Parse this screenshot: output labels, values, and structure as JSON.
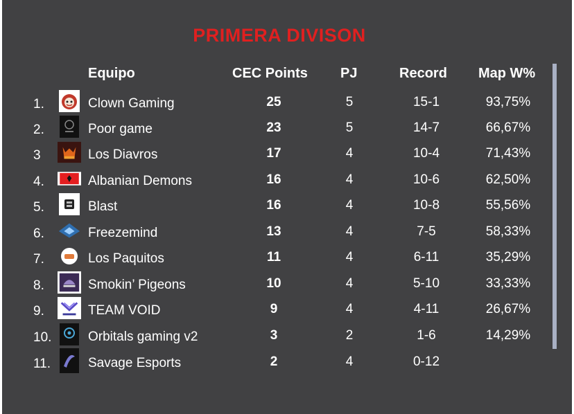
{
  "title": "PRIMERA DIVISON",
  "headers": {
    "team": "Equipo",
    "points": "CEC Points",
    "played": "PJ",
    "record": "Record",
    "map_win": "Map W%"
  },
  "colors": {
    "background": "#414143",
    "title": "#e02020",
    "text": "#ffffff",
    "scrollbar": "#a9b0c4"
  },
  "rows": [
    {
      "rank": "1.",
      "team": "Clown Gaming",
      "points": "25",
      "played": "5",
      "record": "15-1",
      "map_win": "93,75%",
      "logo_icon": "clown-logo-icon"
    },
    {
      "rank": "2.",
      "team": "Poor game",
      "points": "23",
      "played": "5",
      "record": "14-7",
      "map_win": "66,67%",
      "logo_icon": "poor-game-logo-icon"
    },
    {
      "rank": "3",
      "team": "Los Diavros",
      "points": "17",
      "played": "4",
      "record": "10-4",
      "map_win": "71,43%",
      "logo_icon": "diavros-logo-icon"
    },
    {
      "rank": "4.",
      "team": "Albanian Demons",
      "points": "16",
      "played": "4",
      "record": "10-6",
      "map_win": "62,50%",
      "logo_icon": "albanian-flag-logo-icon"
    },
    {
      "rank": "5.",
      "team": "Blast",
      "points": "16",
      "played": "4",
      "record": "10-8",
      "map_win": "55,56%",
      "logo_icon": "blast-logo-icon"
    },
    {
      "rank": "6.",
      "team": "Freezemind",
      "points": "13",
      "played": "4",
      "record": "7-5",
      "map_win": "58,33%",
      "logo_icon": "freezemind-logo-icon"
    },
    {
      "rank": "7.",
      "team": "Los Paquitos",
      "points": "11",
      "played": "4",
      "record": "6-11",
      "map_win": "35,29%",
      "logo_icon": "paquitos-logo-icon"
    },
    {
      "rank": "8.",
      "team": "Smokin’ Pigeons",
      "points": "10",
      "played": "4",
      "record": "5-10",
      "map_win": "33,33%",
      "logo_icon": "pigeons-logo-icon"
    },
    {
      "rank": "9.",
      "team": "TEAM VOID",
      "points": "9",
      "played": "4",
      "record": "4-11",
      "map_win": "26,67%",
      "logo_icon": "team-void-logo-icon"
    },
    {
      "rank": "10.",
      "team": "Orbitals gaming v2",
      "points": "3",
      "played": "2",
      "record": "1-6",
      "map_win": "14,29%",
      "logo_icon": "orbitals-logo-icon"
    },
    {
      "rank": "11.",
      "team": "Savage Esports",
      "points": "2",
      "played": "4",
      "record": "0-12",
      "map_win": "",
      "logo_icon": "savage-logo-icon"
    }
  ]
}
